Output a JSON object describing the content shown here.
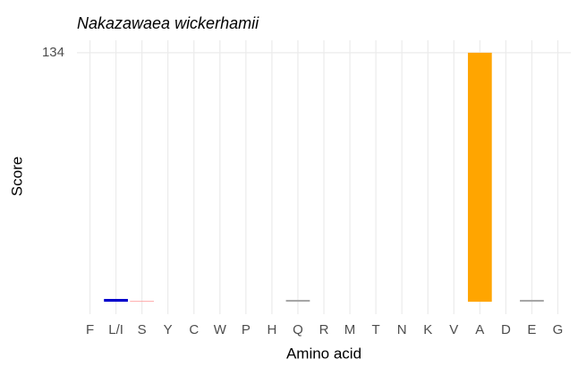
{
  "chart_data": {
    "type": "bar",
    "title": "Nakazawaea wickerhamii",
    "x_label": "Amino acid",
    "y_label": "Score",
    "categories": [
      "F",
      "L/I",
      "S",
      "Y",
      "C",
      "W",
      "P",
      "H",
      "Q",
      "R",
      "M",
      "T",
      "N",
      "K",
      "V",
      "A",
      "D",
      "E",
      "G"
    ],
    "values": [
      0,
      1.5,
      0.4,
      0,
      0,
      0,
      0,
      0,
      1,
      0,
      0,
      0,
      0,
      0,
      0,
      134,
      0,
      1,
      0
    ],
    "colors": [
      "#cccccc",
      "#0000cc",
      "#ff9999",
      "#cccccc",
      "#cccccc",
      "#cccccc",
      "#cccccc",
      "#cccccc",
      "#a6a6a6",
      "#cccccc",
      "#cccccc",
      "#cccccc",
      "#cccccc",
      "#cccccc",
      "#cccccc",
      "#ffa500",
      "#cccccc",
      "#a6a6a6",
      "#cccccc"
    ],
    "ylim": [
      -6.7,
      140.7
    ],
    "yticks": [
      134
    ],
    "grid": true
  }
}
